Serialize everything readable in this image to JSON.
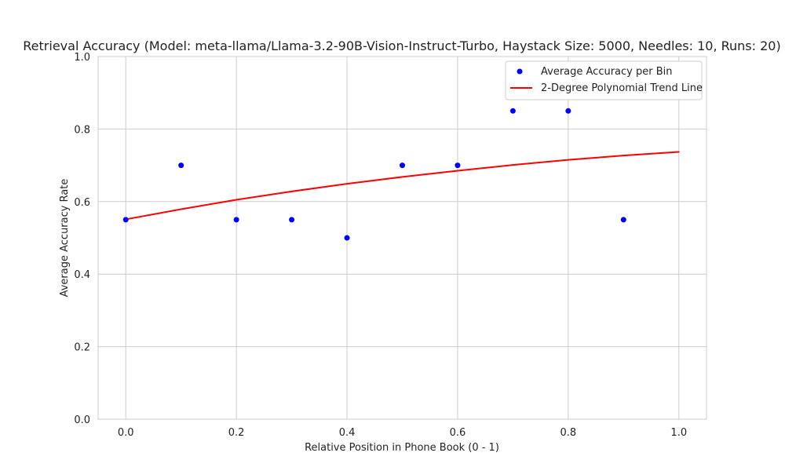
{
  "chart_data": {
    "type": "scatter",
    "title": "Retrieval Accuracy (Model: meta-llama/Llama-3.2-90B-Vision-Instruct-Turbo, Haystack Size: 5000, Needles: 10, Runs: 20)",
    "xlabel": "Relative Position in Phone Book (0 - 1)",
    "ylabel": "Average Accuracy Rate",
    "xlim": [
      -0.05,
      1.05
    ],
    "ylim": [
      0.0,
      1.0
    ],
    "xticks": [
      "0.0",
      "0.2",
      "0.4",
      "0.6",
      "0.8",
      "1.0"
    ],
    "yticks": [
      "0.0",
      "0.2",
      "0.4",
      "0.6",
      "0.8",
      "1.0"
    ],
    "grid": true,
    "legend_position": "top-right",
    "series": [
      {
        "name": "Average Accuracy per Bin",
        "kind": "scatter",
        "color": "#0000ff",
        "x": [
          0.0,
          0.1,
          0.2,
          0.3,
          0.4,
          0.5,
          0.6,
          0.7,
          0.8,
          0.9
        ],
        "y": [
          0.55,
          0.7,
          0.55,
          0.55,
          0.5,
          0.7,
          0.7,
          0.85,
          0.85,
          0.55
        ]
      },
      {
        "name": "2-Degree Polynomial Trend Line",
        "kind": "line",
        "color": "#ff0000",
        "x": [
          0.0,
          0.1,
          0.2,
          0.3,
          0.4,
          0.5,
          0.6,
          0.7,
          0.8,
          0.9,
          1.0
        ],
        "y": [
          0.551,
          0.579,
          0.605,
          0.628,
          0.649,
          0.668,
          0.685,
          0.701,
          0.715,
          0.727,
          0.737
        ]
      }
    ]
  }
}
